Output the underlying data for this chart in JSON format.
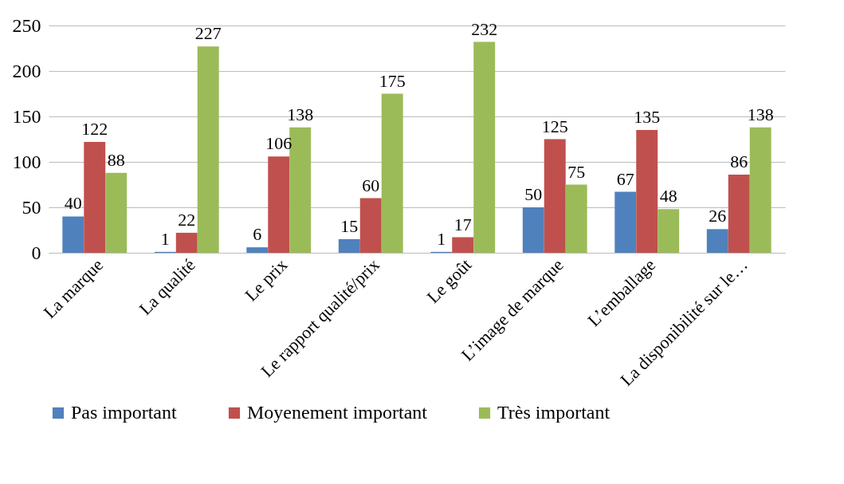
{
  "chart_data": {
    "type": "bar",
    "categories": [
      "La marque",
      "La qualité",
      "Le prix",
      "Le rapport qualité/prix",
      "Le goût",
      "L’image de marque",
      "L’emballage",
      "La disponibilité sur le…"
    ],
    "series": [
      {
        "name": "Pas important",
        "color": "#4f81bd",
        "values": [
          40,
          1,
          6,
          15,
          1,
          50,
          67,
          26
        ]
      },
      {
        "name": "Moyenement important",
        "color": "#c0504d",
        "values": [
          122,
          22,
          106,
          60,
          17,
          125,
          135,
          86
        ]
      },
      {
        "name": "Très important",
        "color": "#9bbb59",
        "values": [
          88,
          227,
          138,
          175,
          232,
          75,
          48,
          138
        ]
      }
    ],
    "ylim": [
      0,
      250
    ],
    "yticks": [
      0,
      50,
      100,
      150,
      200,
      250
    ],
    "grid": "y",
    "legend": "bottom",
    "data_labels": true
  }
}
